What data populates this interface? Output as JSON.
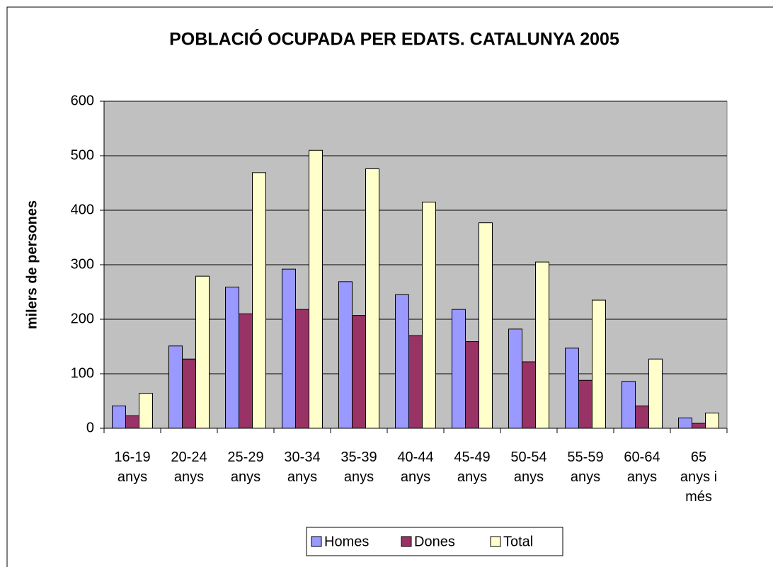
{
  "chart_data": {
    "type": "bar",
    "title": "POBLACIÓ OCUPADA PER EDATS. CATALUNYA 2005",
    "y_label": "milers de persones",
    "categories": [
      "16-19\nanys",
      "20-24\nanys",
      "25-29\nanys",
      "30-34\nanys",
      "35-39\nanys",
      "40-44\nanys",
      "45-49\nanys",
      "50-54\nanys",
      "55-59\nanys",
      "60-64\nanys",
      "65\nanys i\nmés"
    ],
    "series": [
      {
        "name": "Homes",
        "color": "#9999ff",
        "values": [
          41,
          151,
          259,
          292,
          269,
          245,
          218,
          182,
          147,
          86,
          19
        ]
      },
      {
        "name": "Dones",
        "color": "#993366",
        "values": [
          23,
          127,
          210,
          218,
          207,
          170,
          159,
          122,
          88,
          41,
          9
        ]
      },
      {
        "name": "Total",
        "color": "#ffffcc",
        "values": [
          64,
          279,
          469,
          510,
          476,
          415,
          377,
          305,
          235,
          127,
          28
        ]
      }
    ],
    "ylim": [
      0,
      600
    ],
    "yticks": [
      0,
      100,
      200,
      300,
      400,
      500,
      600
    ],
    "grid": true,
    "legend": "bottom",
    "plot_background": "#c0c0c0"
  }
}
